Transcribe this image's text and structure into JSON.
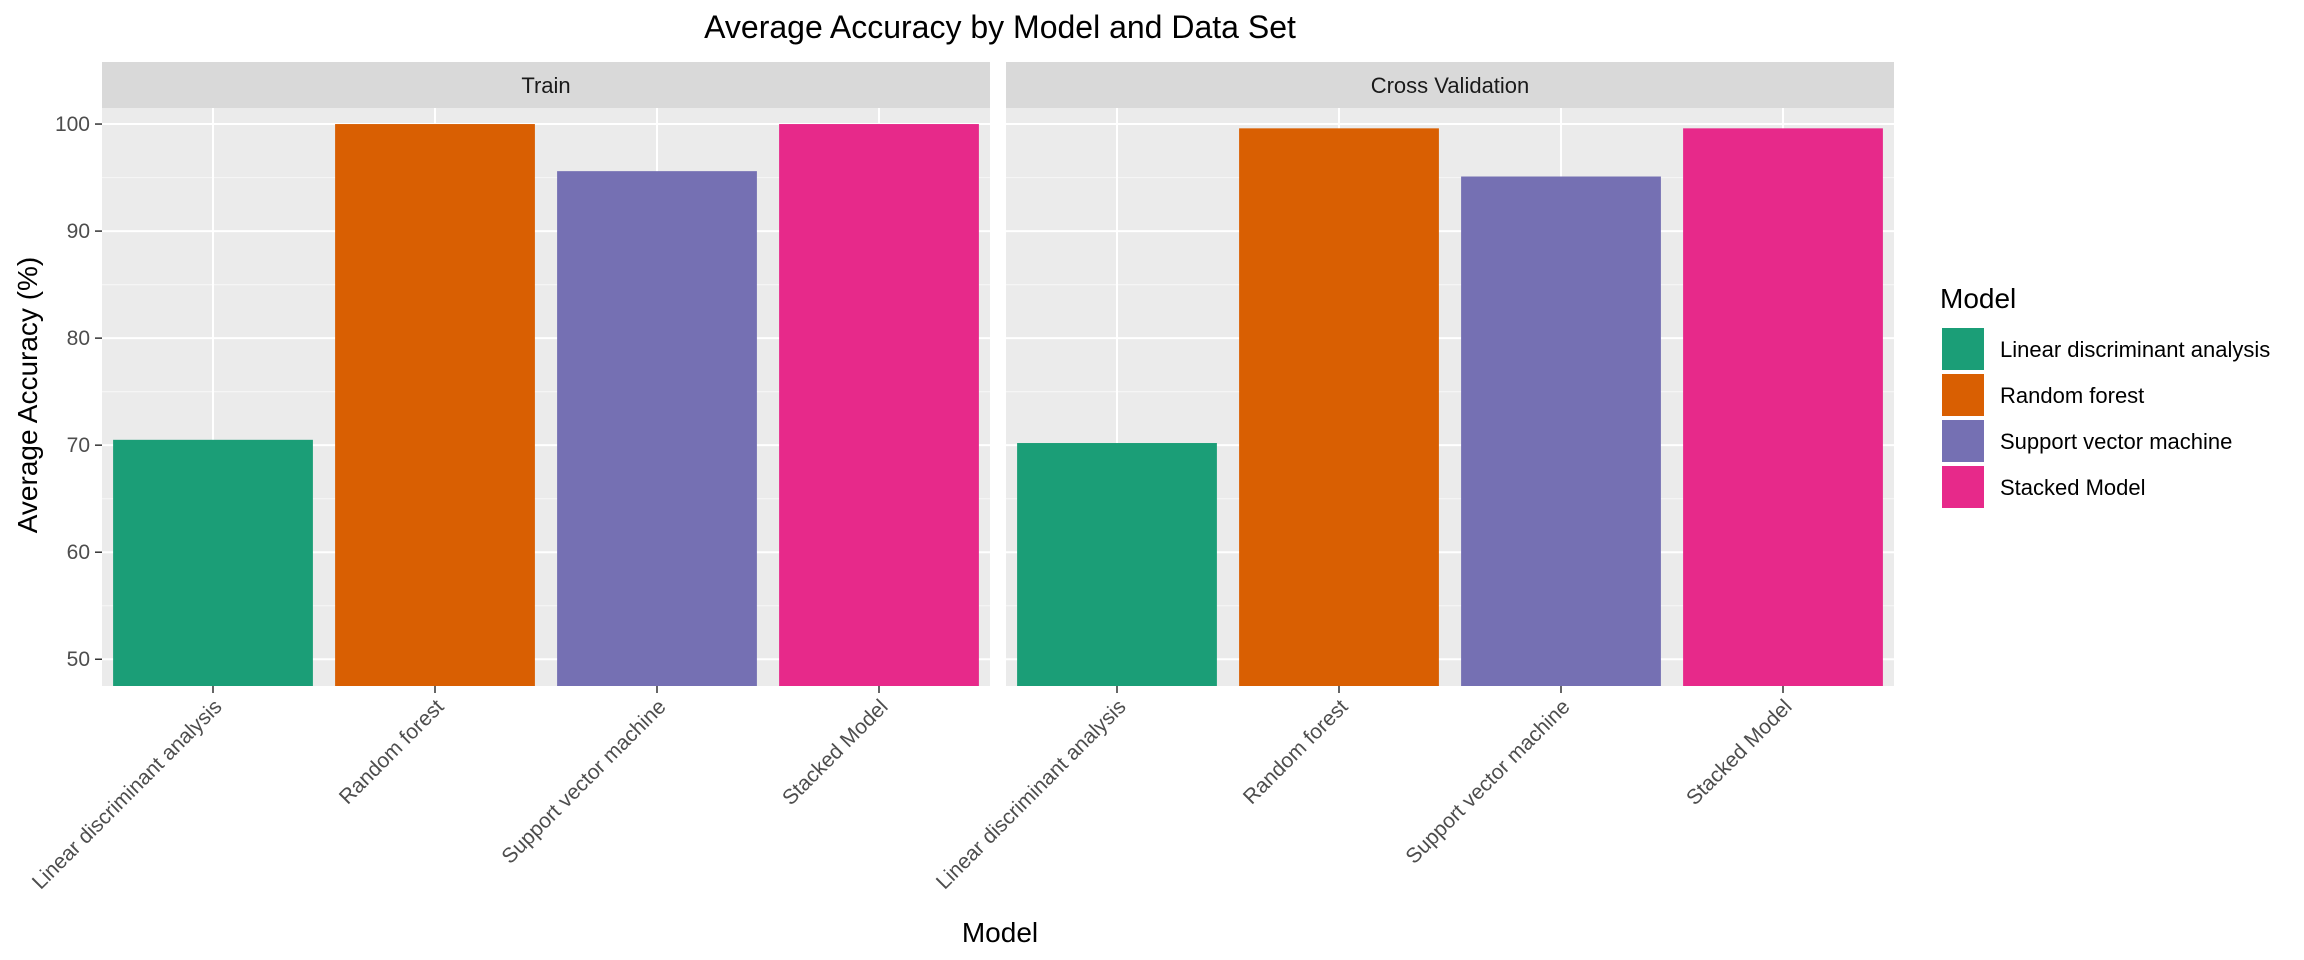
{
  "chart_data": {
    "type": "bar",
    "title": "Average Accuracy by Model and Data Set",
    "xlabel": "Model",
    "ylabel": "Average Accuracy (%)",
    "ylim": [
      47.5,
      101.5
    ],
    "yticks": [
      50,
      60,
      70,
      80,
      90,
      100
    ],
    "grid": true,
    "legend": {
      "title": "Model",
      "position": "right",
      "items": [
        {
          "label": "Linear discriminant analysis",
          "color": "#1b9e77"
        },
        {
          "label": "Random forest",
          "color": "#d95f02"
        },
        {
          "label": "Support vector machine",
          "color": "#7570b3"
        },
        {
          "label": "Stacked Model",
          "color": "#e7298a"
        }
      ]
    },
    "categories": [
      "Linear discriminant analysis",
      "Random forest",
      "Support vector machine",
      "Stacked Model"
    ],
    "colors": [
      "#1b9e77",
      "#d95f02",
      "#7570b3",
      "#e7298a"
    ],
    "panels": [
      {
        "name": "Train",
        "values": [
          70.5,
          100.0,
          95.6,
          100.0
        ]
      },
      {
        "name": "Cross Validation",
        "values": [
          70.2,
          99.6,
          95.1,
          99.6
        ]
      }
    ]
  }
}
